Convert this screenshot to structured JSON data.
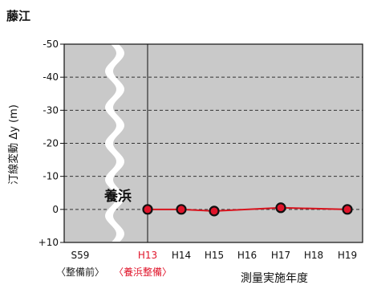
{
  "chart_data": {
    "type": "line",
    "title": "藤江",
    "xlabel": "測量実施年度",
    "ylabel": "汀線変動 Δy (m)",
    "x_categories": [
      "S59",
      "H13",
      "H14",
      "H15",
      "H16",
      "H17",
      "H18",
      "H19"
    ],
    "ylim": [
      -50,
      10
    ],
    "y_inverted": true,
    "y_ticks": [
      -50,
      -40,
      -30,
      -20,
      -10,
      0,
      10
    ],
    "y_tick_labels": [
      "-50",
      "-40",
      "-30",
      "-20",
      "-10",
      "0",
      "+10"
    ],
    "axis_break_between": [
      "S59",
      "H13"
    ],
    "grid": "horizontal dashed",
    "annotation": "養浜",
    "phase_labels": [
      {
        "text": "〈整備前〉",
        "color": "#222222"
      },
      {
        "text": "〈養浜整備〉",
        "color": "#e0142a"
      }
    ],
    "series": [
      {
        "points": [
          {
            "x": "H13",
            "y": 0
          },
          {
            "x": "H14",
            "y": 0
          },
          {
            "x": "H15",
            "y": 0.5
          },
          {
            "x": "H17",
            "y": -0.5
          },
          {
            "x": "H19",
            "y": 0
          }
        ],
        "color": "#d8141e"
      }
    ],
    "colors": {
      "plot_background": "#c9c9c9",
      "highlight_tick": "#e0142a",
      "line": "#d8141e",
      "marker_fill": "#e0142a",
      "marker_edge": "#111111"
    }
  }
}
